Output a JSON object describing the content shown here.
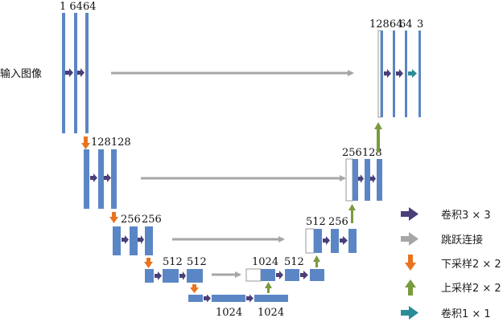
{
  "input_label": "输入图像",
  "channels": {
    "enc1": "1 6464",
    "enc2": "128128",
    "enc3_a": "256",
    "enc3_b": "256",
    "enc4_a": "512",
    "enc4_b": "512",
    "bottom_top": "1024",
    "dec4": "512",
    "bottom_1": "1024",
    "bottom_2": "1024",
    "dec3_a": "512",
    "dec3_b": "256",
    "dec2": "256128",
    "dec1_a": "12864",
    "dec1_b": "64",
    "dec1_c": "3"
  },
  "legend": [
    {
      "key": "conv3",
      "label": "卷积3 × 3"
    },
    {
      "key": "skip",
      "label": "跳跃连接"
    },
    {
      "key": "down",
      "label": "下采样2 × 2"
    },
    {
      "key": "up",
      "label": "上采样2 × 2"
    },
    {
      "key": "conv1",
      "label": "卷积1 × 1"
    }
  ],
  "colors": {
    "block": "#5b86c5",
    "conv3_arrow": "#4a3f78",
    "skip_arrow": "#a6a6a6",
    "down_arrow": "#e9731e",
    "up_arrow": "#7a9a3e",
    "conv1_arrow": "#2a8c97"
  }
}
